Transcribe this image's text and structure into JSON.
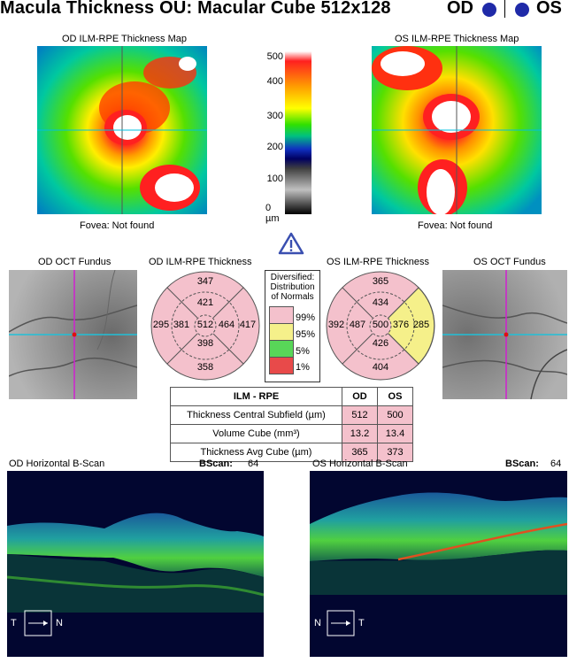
{
  "header": {
    "title": "Macula Thickness OU: Macular Cube 512x128",
    "od_label": "OD",
    "os_label": "OS",
    "eye_dot_color": "#1f2aa8"
  },
  "maps": {
    "od_title": "OD ILM-RPE Thickness Map",
    "os_title": "OS ILM-RPE Thickness Map",
    "od_fovea": "Fovea: Not found",
    "os_fovea": "Fovea: Not found"
  },
  "colorbar": {
    "ticks": [
      "500",
      "400",
      "300",
      "200",
      "100"
    ],
    "zero_label": "0 µm"
  },
  "fundus": {
    "od_title": "OD OCT Fundus",
    "os_title": "OS OCT Fundus"
  },
  "grids": {
    "od_title": "OD ILM-RPE Thickness",
    "os_title": "OS ILM-RPE Thickness",
    "od": {
      "top_outer": "347",
      "top_inner": "421",
      "left_outer": "295",
      "left_inner": "381",
      "center": "512",
      "right_inner": "464",
      "right_outer": "417",
      "bottom_inner": "398",
      "bottom_outer": "358"
    },
    "os": {
      "top_outer": "365",
      "top_inner": "434",
      "left_outer": "392",
      "left_inner": "487",
      "center": "500",
      "right_inner": "376",
      "right_outer": "285",
      "bottom_inner": "426",
      "bottom_outer": "404"
    }
  },
  "normals": {
    "heading": [
      "Diversified:",
      "Distribution",
      "of Normals"
    ],
    "levels": [
      "99%",
      "95%",
      "5%",
      "1%"
    ],
    "colors": [
      "#f4c1cc",
      "#f5f08a",
      "#58d658",
      "#e84a4a"
    ]
  },
  "table": {
    "header": [
      "ILM - RPE",
      "OD",
      "OS"
    ],
    "rows": [
      {
        "label": "Thickness Central Subfield (µm)",
        "od": "512",
        "os": "500"
      },
      {
        "label": "Volume Cube (mm³)",
        "od": "13.2",
        "os": "13.4"
      },
      {
        "label": "Thickness Avg Cube (µm)",
        "od": "365",
        "os": "373"
      }
    ]
  },
  "bscans": {
    "od_title": "OD Horizontal B-Scan",
    "os_title": "OS Horizontal B-Scan",
    "bscan_label": "BScan:",
    "od_bscan": "64",
    "os_bscan": "64",
    "od_left": "T",
    "od_right": "N",
    "os_left": "N",
    "os_right": "T"
  }
}
